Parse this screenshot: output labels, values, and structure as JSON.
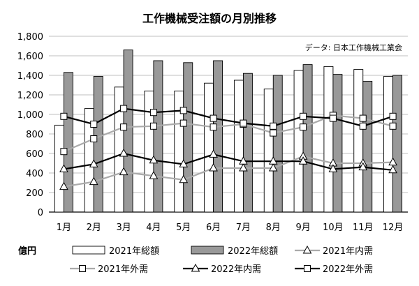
{
  "chart_data": {
    "type": "bar",
    "title": "工作機械受注額の月別推移",
    "source_note": "データ: 日本工作機械工業会",
    "unit_label": "億円",
    "categories": [
      "1月",
      "2月",
      "3月",
      "4月",
      "5月",
      "6月",
      "7月",
      "8月",
      "9月",
      "10月",
      "11月",
      "12月"
    ],
    "ylim": [
      0,
      1800
    ],
    "y_ticks": [
      "0",
      "200",
      "400",
      "600",
      "800",
      "1,000",
      "1,200",
      "1,400",
      "1,600",
      "1,800"
    ],
    "grid": true,
    "legend_position": "bottom",
    "bar_series": [
      {
        "name": "2021年総額",
        "color": "#ffffff",
        "values": [
          890,
          1060,
          1280,
          1240,
          1240,
          1320,
          1350,
          1260,
          1450,
          1490,
          1460,
          1390
        ]
      },
      {
        "name": "2022年総額",
        "color": "#999999",
        "values": [
          1430,
          1390,
          1660,
          1550,
          1530,
          1550,
          1420,
          1400,
          1510,
          1410,
          1340,
          1400
        ]
      }
    ],
    "line_series": [
      {
        "name": "2021年内需",
        "color": "#aaaaaa",
        "marker": "triangle",
        "values": [
          260,
          310,
          410,
          370,
          330,
          450,
          450,
          450,
          570,
          500,
          500,
          510
        ]
      },
      {
        "name": "2021年外需",
        "color": "#aaaaaa",
        "marker": "square",
        "values": [
          620,
          750,
          870,
          880,
          910,
          870,
          900,
          810,
          870,
          990,
          960,
          880
        ]
      },
      {
        "name": "2022年内需",
        "color": "#000000",
        "marker": "triangle",
        "values": [
          440,
          490,
          600,
          530,
          490,
          590,
          520,
          520,
          520,
          440,
          460,
          430
        ]
      },
      {
        "name": "2022年外需",
        "color": "#000000",
        "marker": "square",
        "values": [
          980,
          900,
          1060,
          1020,
          1040,
          960,
          910,
          880,
          980,
          960,
          880,
          980
        ]
      }
    ]
  }
}
